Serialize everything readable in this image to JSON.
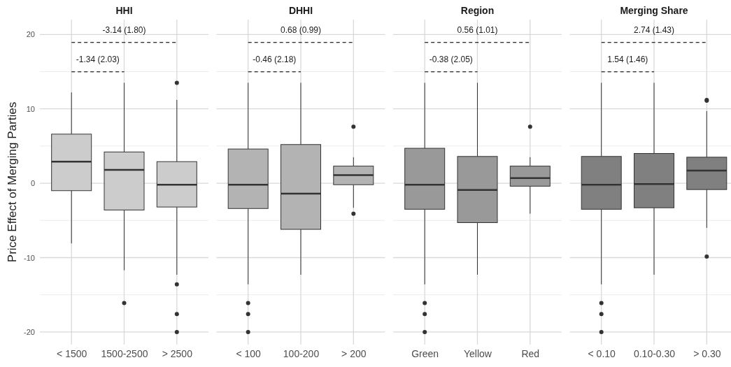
{
  "chart_data": [
    {
      "type": "box",
      "title": "HHI",
      "ylabel": "Price Effect of Merging Parties",
      "categories": [
        "< 1500",
        "1500-2500",
        "> 2500"
      ],
      "color": "#cccccc",
      "ylim": [
        -21.7,
        22
      ],
      "yticks": [
        -20,
        -10,
        0,
        10,
        20
      ],
      "grid": true,
      "annotations": [
        "-3.14 (1.80)",
        "-1.34 (2.03)"
      ],
      "boxes": [
        {
          "low": -8.1,
          "q1": -1.0,
          "median": 2.9,
          "q3": 6.6,
          "high": 12.2
        },
        {
          "low": -11.7,
          "q1": -3.6,
          "median": 1.8,
          "q3": 4.2,
          "high": 13.5,
          "outliers": [
            -16.1
          ]
        },
        {
          "low": -12.3,
          "q1": -3.2,
          "median": -0.2,
          "q3": 2.9,
          "high": 11.2,
          "outliers": [
            13.5,
            -13.6,
            -17.6,
            -20.0
          ]
        }
      ]
    },
    {
      "type": "box",
      "title": "DHHI",
      "categories": [
        "< 100",
        "100-200",
        "> 200"
      ],
      "color": "#b3b3b3",
      "ylim": [
        -21.7,
        22
      ],
      "yticks": [
        -20,
        -10,
        0,
        10,
        20
      ],
      "grid": true,
      "tick_labels": "x",
      "annotations": [
        "0.68 (0.99)",
        "-0.46 (2.18)"
      ],
      "boxes": [
        {
          "low": -13.6,
          "q1": -3.4,
          "median": -0.2,
          "q3": 4.6,
          "high": 13.5,
          "outliers": [
            -16.1,
            -17.6,
            -20.0
          ]
        },
        {
          "low": -12.3,
          "q1": -6.2,
          "median": -1.4,
          "q3": 5.2,
          "high": 13.5
        },
        {
          "low": -3.3,
          "q1": -0.2,
          "median": 1.1,
          "q3": 2.3,
          "high": 3.5,
          "outliers": [
            7.6,
            -4.1
          ]
        }
      ]
    },
    {
      "type": "box",
      "title": "Region",
      "categories": [
        "Green",
        "Yellow",
        "Red"
      ],
      "color": "#999999",
      "ylim": [
        -21.7,
        22
      ],
      "yticks": [
        -20,
        -10,
        0,
        10,
        20
      ],
      "grid": true,
      "tick_labels": "x",
      "annotations": [
        "0.56 (1.01)",
        "-0.38 (2.05)"
      ],
      "boxes": [
        {
          "low": -13.6,
          "q1": -3.5,
          "median": -0.2,
          "q3": 4.7,
          "high": 13.5,
          "outliers": [
            -16.1,
            -17.6,
            -20.0
          ]
        },
        {
          "low": -12.3,
          "q1": -5.3,
          "median": -0.9,
          "q3": 3.6,
          "high": 13.5
        },
        {
          "low": -4.1,
          "q1": -0.4,
          "median": 0.7,
          "q3": 2.3,
          "high": 3.5,
          "outliers": [
            7.6
          ]
        }
      ]
    },
    {
      "type": "box",
      "title": "Merging Share",
      "categories": [
        "< 0.10",
        "0.10-0.30",
        "> 0.30"
      ],
      "color": "#808080",
      "ylim": [
        -21.7,
        22
      ],
      "yticks": [
        -20,
        -10,
        0,
        10,
        20
      ],
      "grid": true,
      "tick_labels": "x",
      "annotations": [
        "2.74 (1.43)",
        "1.54 (1.46)"
      ],
      "boxes": [
        {
          "low": -13.6,
          "q1": -3.5,
          "median": -0.2,
          "q3": 3.6,
          "high": 13.5,
          "outliers": [
            -16.1,
            -17.6,
            -20.0
          ]
        },
        {
          "low": -12.3,
          "q1": -3.3,
          "median": -0.1,
          "q3": 4.0,
          "high": 13.5
        },
        {
          "low": -6.0,
          "q1": -0.85,
          "median": 1.7,
          "q3": 3.5,
          "high": 9.7,
          "outliers": [
            11.2,
            11.1,
            -9.85
          ]
        }
      ]
    }
  ]
}
